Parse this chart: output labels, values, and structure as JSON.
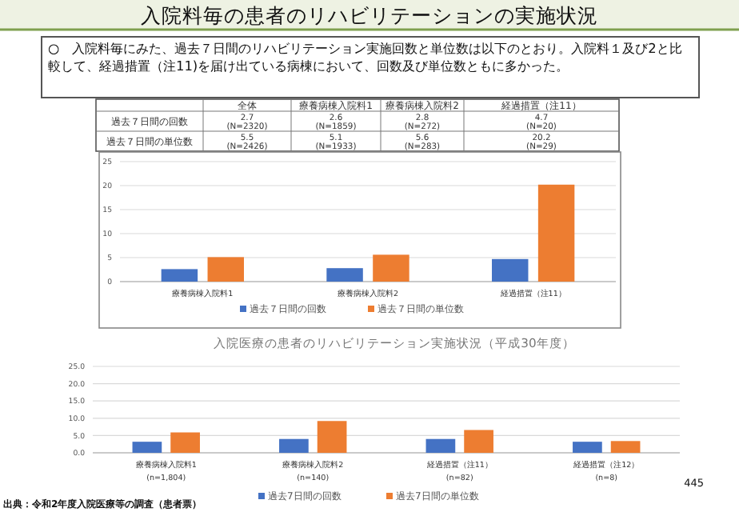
{
  "chart_data": [
    {
      "type": "other",
      "title": "入院料毎の患者のリハビリテーションの実施状況",
      "subtitle": "○　入院料毎にみた、過去７日間のリハビリテーション実施回数と単位数は以下のとおり。入院料１及び2と比較して、経過措置（注11)を届け出ている病棟において、回数及び単位数ともに多かった。",
      "categories": [
        "全体",
        "療養病棟入院料1",
        "療養病棟入院料2",
        "経過措置（注11）"
      ],
      "y_categories": [
        "過去７日間の回数",
        "過去７日間の単位数"
      ],
      "cell_labels": [
        [
          "2.7\n(N=2320)",
          "2.6\n(N=1859)",
          "2.8\n(N=272)",
          "4.7\n(N=20)"
        ],
        [
          "5.5\n(N=2426)",
          "5.1\n(N=1933)",
          "5.6\n(N=283)",
          "20.2\n(N=29)"
        ]
      ],
      "annotations": [
        "出典：令和2年度入院医療等の調査（患者票）",
        "445"
      ]
    },
    {
      "type": "bar",
      "categories": [
        "療養病棟入院料1",
        "療養病棟入院料2",
        "経過措置（注11）"
      ],
      "series": [
        {
          "name": "過去７日間の回数",
          "color": "#4472c4",
          "values": [
            2.6,
            2.8,
            4.7
          ]
        },
        {
          "name": "過去７日間の単位数",
          "color": "#ed7d31",
          "values": [
            5.1,
            5.6,
            20.2
          ]
        }
      ],
      "ylim": [
        0,
        25
      ],
      "yticks": [
        0,
        5,
        10,
        15,
        20,
        25
      ],
      "grid": "y",
      "legend": "bottom"
    },
    {
      "type": "bar",
      "title": "入院医療の患者のリハビリテーション実施状況（平成30年度）",
      "categories": [
        "療養病棟入院料1\n(n=1,804)",
        "療養病棟入院料2\n(n=140)",
        "経過措置（注11）\n(n=82)",
        "経過措置（注12）\n(n=8)"
      ],
      "series": [
        {
          "name": "過去7日間の回数",
          "color": "#4472c4",
          "values": [
            3.2,
            4.0,
            4.0,
            3.2
          ]
        },
        {
          "name": "過去7日間の単位数",
          "color": "#ed7d31",
          "values": [
            5.9,
            9.2,
            6.6,
            3.4
          ]
        }
      ],
      "ylim": [
        0,
        25
      ],
      "yticks": [
        {
          "value": 0,
          "label": "0.0"
        },
        {
          "value": 5,
          "label": "5.0"
        },
        {
          "value": 10,
          "label": "10.0"
        },
        {
          "value": 15,
          "label": "15.0"
        },
        {
          "value": 20,
          "label": "20.0"
        },
        {
          "value": 25,
          "label": "25.0"
        }
      ],
      "grid": "y",
      "legend": "bottom"
    }
  ]
}
